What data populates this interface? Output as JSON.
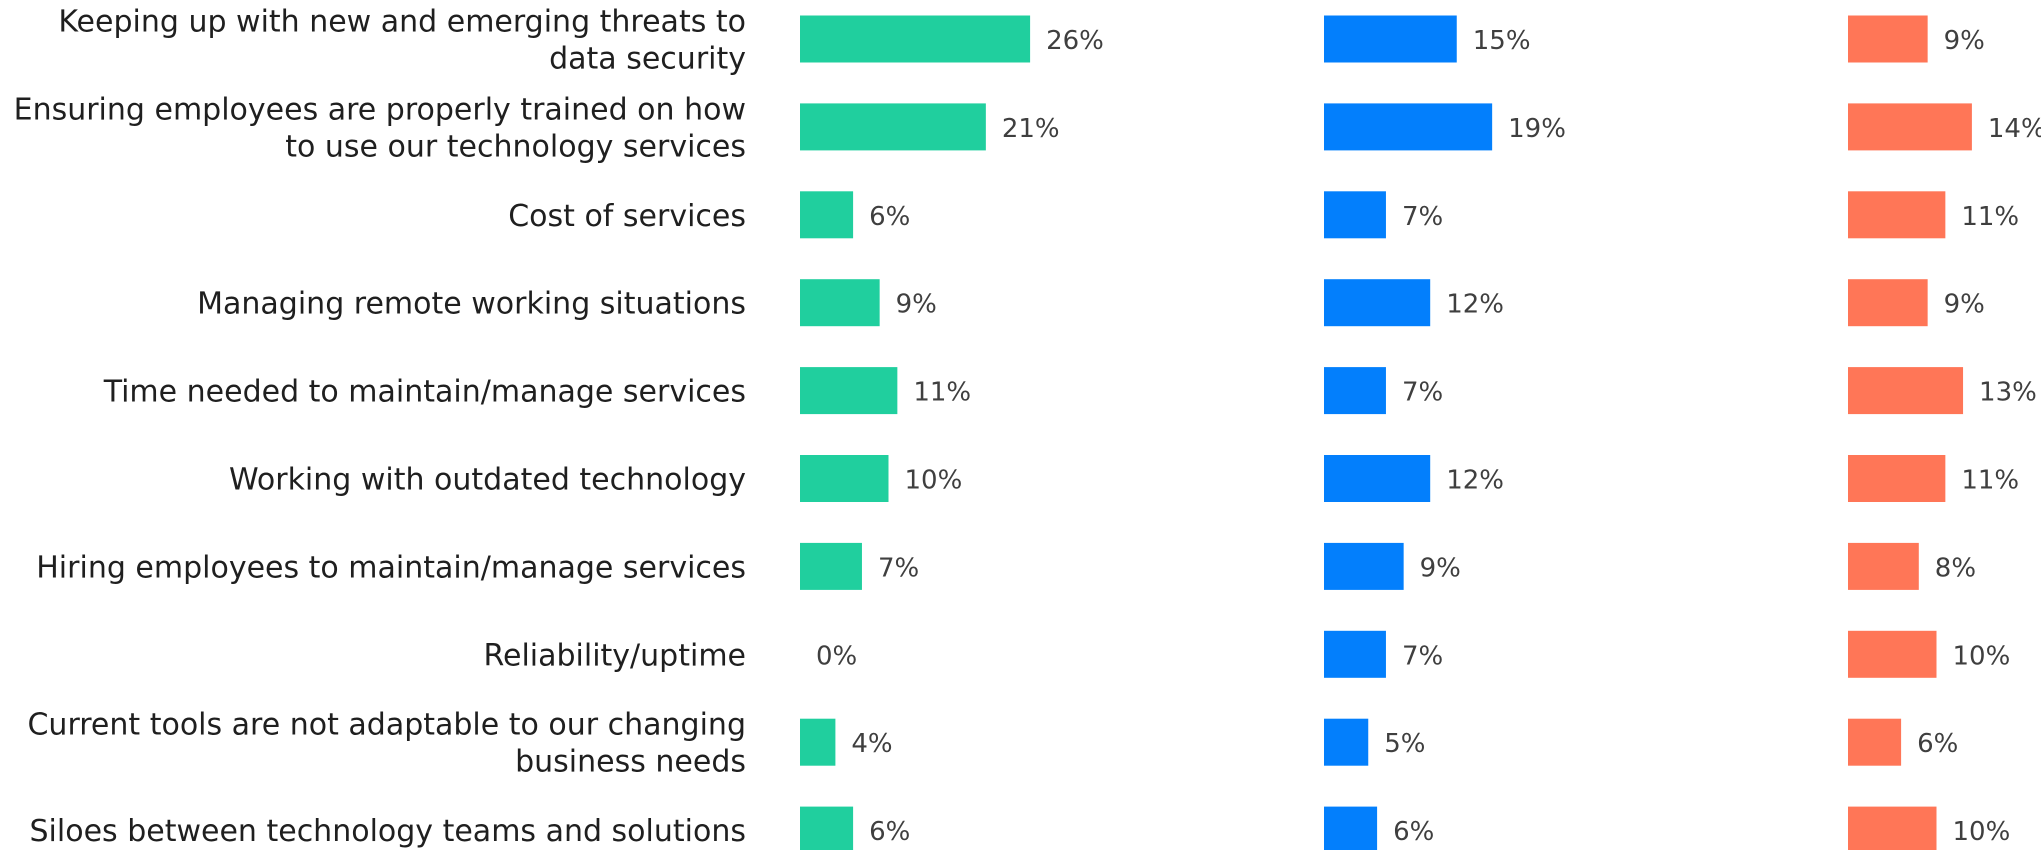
{
  "chart_data": {
    "type": "bar",
    "orientation": "horizontal",
    "categories": [
      [
        "Keeping up with new and emerging threats to",
        "data security"
      ],
      [
        "Ensuring employees are properly trained on how",
        "to use our technology services"
      ],
      [
        "Cost of services"
      ],
      [
        "Managing remote working situations"
      ],
      [
        "Time needed to maintain/manage services"
      ],
      [
        "Working with outdated technology"
      ],
      [
        "Hiring employees to maintain/manage services"
      ],
      [
        "Reliability/uptime"
      ],
      [
        "Current tools are not adaptable to our changing",
        "business needs"
      ],
      [
        "Siloes between technology teams and solutions"
      ]
    ],
    "series": [
      {
        "values": [
          26,
          21,
          6,
          9,
          11,
          10,
          7,
          0,
          4,
          6
        ],
        "color": "#20cf9e"
      },
      {
        "values": [
          15,
          19,
          7,
          12,
          7,
          12,
          9,
          7,
          5,
          6
        ],
        "color": "#037ffc"
      },
      {
        "values": [
          9,
          14,
          11,
          9,
          13,
          11,
          8,
          10,
          6,
          10
        ],
        "color": "#ff7657"
      }
    ],
    "value_suffix": "%",
    "title": "",
    "xlabel": "",
    "ylabel": "",
    "grid": false,
    "legend": "none"
  }
}
